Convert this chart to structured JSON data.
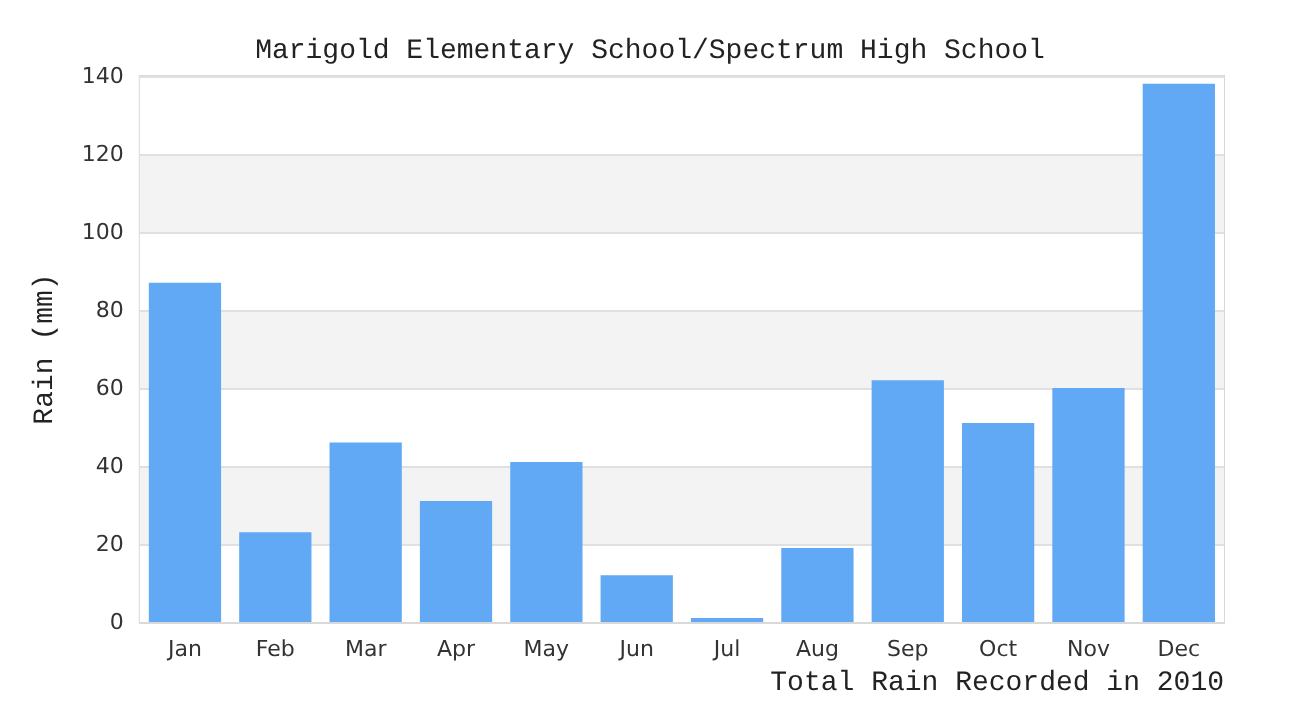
{
  "chart_data": {
    "type": "bar",
    "title": "Marigold Elementary School/Spectrum High School",
    "xlabel": "Total Rain Recorded in 2010",
    "ylabel": "Rain (mm)",
    "categories": [
      "Jan",
      "Feb",
      "Mar",
      "Apr",
      "May",
      "Jun",
      "Jul",
      "Aug",
      "Sep",
      "Oct",
      "Nov",
      "Dec"
    ],
    "values": [
      87,
      23,
      46,
      31,
      41,
      12,
      1,
      19,
      62,
      51,
      60,
      138
    ],
    "color": "#61a9f5",
    "ylim": [
      0,
      140
    ],
    "yticks": [
      0,
      20,
      40,
      60,
      80,
      100,
      120,
      140
    ],
    "grid": "y"
  }
}
